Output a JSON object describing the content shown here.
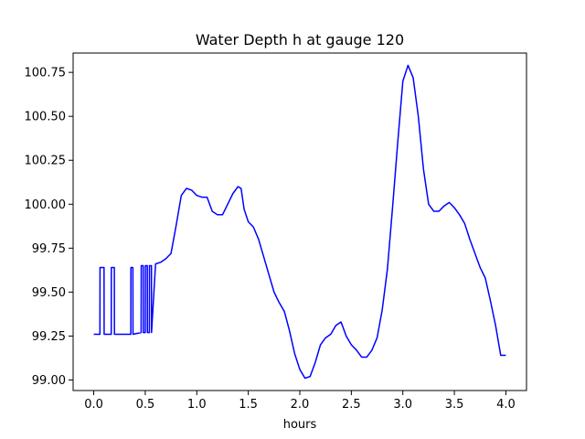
{
  "chart_data": {
    "type": "line",
    "title": "Water Depth h at gauge 120",
    "xlabel": "hours",
    "ylabel": "",
    "xlim": [
      -0.2,
      4.2
    ],
    "ylim": [
      98.94,
      100.86
    ],
    "xticks": [
      0.0,
      0.5,
      1.0,
      1.5,
      2.0,
      2.5,
      3.0,
      3.5,
      4.0
    ],
    "xtick_labels": [
      "0.0",
      "0.5",
      "1.0",
      "1.5",
      "2.0",
      "2.5",
      "3.0",
      "3.5",
      "4.0"
    ],
    "yticks": [
      99.0,
      99.25,
      99.5,
      99.75,
      100.0,
      100.25,
      100.5,
      100.75
    ],
    "ytick_labels": [
      "99.00",
      "99.25",
      "99.50",
      "99.75",
      "100.00",
      "100.25",
      "100.50",
      "100.75"
    ],
    "grid": false,
    "legend": "none",
    "series": [
      {
        "color": "#0000ff",
        "x": [
          0.0,
          0.06,
          0.061,
          0.1,
          0.101,
          0.17,
          0.171,
          0.2,
          0.201,
          0.36,
          0.361,
          0.38,
          0.381,
          0.46,
          0.461,
          0.48,
          0.481,
          0.5,
          0.501,
          0.52,
          0.521,
          0.54,
          0.541,
          0.56,
          0.561,
          0.6,
          0.65,
          0.7,
          0.75,
          0.8,
          0.85,
          0.9,
          0.95,
          1.0,
          1.05,
          1.1,
          1.15,
          1.2,
          1.25,
          1.3,
          1.35,
          1.4,
          1.43,
          1.46,
          1.5,
          1.55,
          1.6,
          1.65,
          1.7,
          1.75,
          1.8,
          1.85,
          1.9,
          1.95,
          2.0,
          2.05,
          2.1,
          2.15,
          2.2,
          2.25,
          2.3,
          2.35,
          2.4,
          2.45,
          2.5,
          2.55,
          2.6,
          2.65,
          2.7,
          2.75,
          2.8,
          2.85,
          2.9,
          2.95,
          3.0,
          3.05,
          3.1,
          3.15,
          3.2,
          3.25,
          3.3,
          3.35,
          3.4,
          3.45,
          3.5,
          3.55,
          3.6,
          3.65,
          3.7,
          3.75,
          3.8,
          3.85,
          3.9,
          3.95,
          4.0
        ],
        "y": [
          99.26,
          99.26,
          99.64,
          99.64,
          99.26,
          99.26,
          99.64,
          99.64,
          99.26,
          99.26,
          99.64,
          99.64,
          99.26,
          99.27,
          99.65,
          99.65,
          99.27,
          99.27,
          99.65,
          99.65,
          99.27,
          99.27,
          99.65,
          99.65,
          99.27,
          99.66,
          99.67,
          99.69,
          99.72,
          99.88,
          100.05,
          100.09,
          100.08,
          100.05,
          100.04,
          100.04,
          99.96,
          99.94,
          99.94,
          100.0,
          100.06,
          100.1,
          100.09,
          99.97,
          99.9,
          99.87,
          99.8,
          99.7,
          99.6,
          99.5,
          99.44,
          99.39,
          99.28,
          99.15,
          99.06,
          99.01,
          99.02,
          99.1,
          99.2,
          99.24,
          99.26,
          99.31,
          99.33,
          99.25,
          99.2,
          99.17,
          99.13,
          99.13,
          99.17,
          99.24,
          99.4,
          99.63,
          99.98,
          100.35,
          100.7,
          100.79,
          100.72,
          100.5,
          100.2,
          100.0,
          99.96,
          99.96,
          99.99,
          100.01,
          99.98,
          99.94,
          99.89,
          99.8,
          99.72,
          99.64,
          99.58,
          99.45,
          99.31,
          99.14,
          99.14
        ]
      }
    ]
  }
}
